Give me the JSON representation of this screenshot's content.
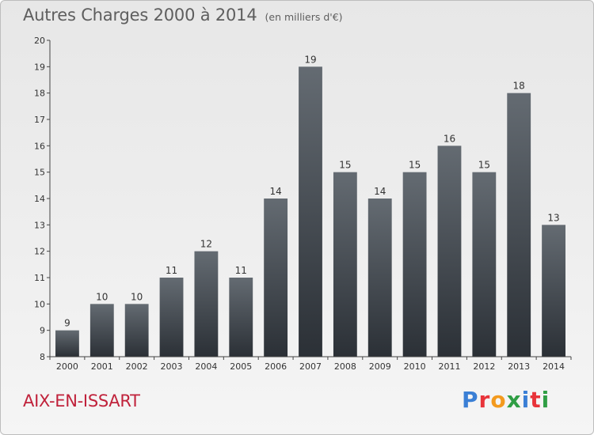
{
  "title": "Autres Charges 2000 à 2014",
  "unit_note": "(en milliers d'€)",
  "town": "AIX-EN-ISSART",
  "logo": {
    "text": "Proxiti",
    "letter_colors": [
      "#3a7fd5",
      "#e8343a",
      "#f39a1e",
      "#2f9e44",
      "#3a7fd5",
      "#e8343a",
      "#2f9e44"
    ]
  },
  "colors": {
    "bar_top": "#646b72",
    "bar_bottom": "#2b3036",
    "axis": "#444444"
  },
  "chart_data": {
    "type": "bar",
    "categories": [
      "2000",
      "2001",
      "2002",
      "2003",
      "2004",
      "2005",
      "2006",
      "2007",
      "2008",
      "2009",
      "2010",
      "2011",
      "2012",
      "2013",
      "2014"
    ],
    "values": [
      9,
      10,
      10,
      11,
      12,
      11,
      14,
      19,
      15,
      14,
      15,
      16,
      15,
      18,
      13
    ],
    "yticks": [
      8,
      9,
      10,
      11,
      12,
      13,
      14,
      15,
      16,
      17,
      18,
      19,
      20
    ],
    "ylim": [
      8,
      20
    ],
    "title": "Autres Charges 2000 à 2014",
    "xlabel": "",
    "ylabel": "",
    "grid": false,
    "legend": "none"
  }
}
